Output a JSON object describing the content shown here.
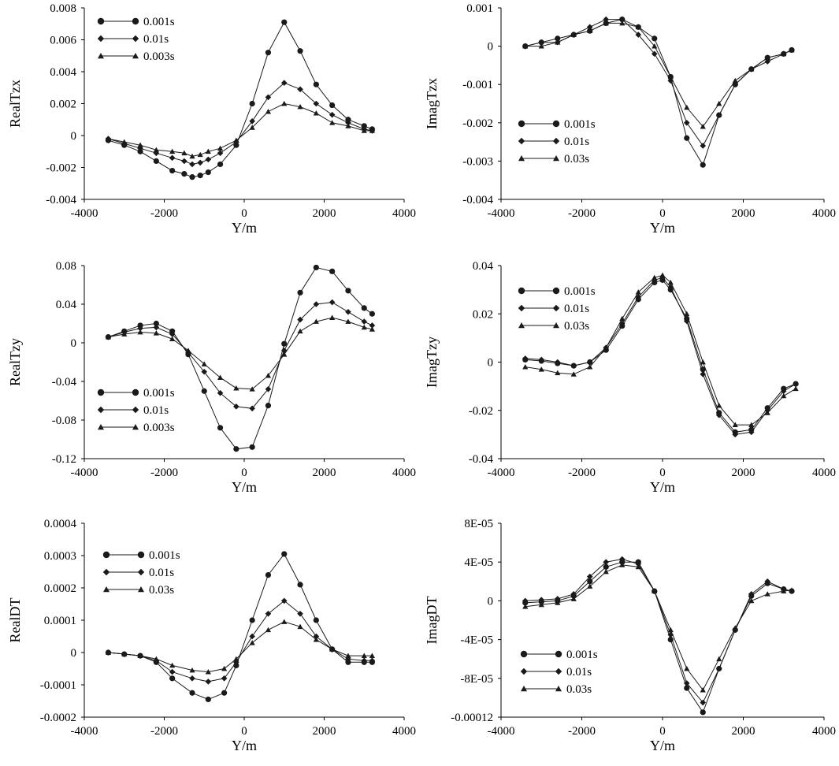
{
  "colors": {
    "line": "#1a1a1a",
    "axis": "#000000",
    "background": "#ffffff"
  },
  "markers": {
    "0.001s": "circle",
    "0.01s": "diamond",
    "0.003s": "triangle",
    "0.03s": "triangle"
  },
  "chart_data": [
    {
      "id": "realtzx",
      "type": "line",
      "title": "",
      "xlabel": "Y/m",
      "ylabel": "RealTzx",
      "xlim": [
        -4000,
        4000
      ],
      "ylim": [
        -0.004,
        0.008
      ],
      "xticks": [
        "-4000",
        "-2000",
        "0",
        "2000",
        "4000"
      ],
      "xtick_values": [
        -4000,
        -2000,
        0,
        2000,
        4000
      ],
      "yticks": [
        "-0.004",
        "-0.002",
        "0",
        "0.002",
        "0.004",
        "0.006",
        "0.008"
      ],
      "ytick_values": [
        -0.004,
        -0.002,
        0,
        0.002,
        0.004,
        0.006,
        0.008
      ],
      "legend_position": "top-left",
      "series": [
        {
          "name": "0.001s",
          "marker": "circle",
          "x": [
            -3400,
            -3000,
            -2600,
            -2200,
            -1800,
            -1500,
            -1300,
            -1100,
            -900,
            -600,
            -200,
            200,
            600,
            1000,
            1400,
            1800,
            2200,
            2600,
            3000,
            3200
          ],
          "y": [
            -0.0003,
            -0.0006,
            -0.001,
            -0.0016,
            -0.0022,
            -0.0024,
            -0.0026,
            -0.0025,
            -0.0023,
            -0.0018,
            -0.0006,
            0.002,
            0.0052,
            0.0071,
            0.0053,
            0.0032,
            0.0019,
            0.001,
            0.0006,
            0.0004
          ]
        },
        {
          "name": "0.01s",
          "marker": "diamond",
          "x": [
            -3400,
            -3000,
            -2600,
            -2200,
            -1800,
            -1500,
            -1300,
            -1100,
            -900,
            -600,
            -200,
            200,
            600,
            1000,
            1400,
            1800,
            2200,
            2600,
            3000,
            3200
          ],
          "y": [
            -0.0002,
            -0.0005,
            -0.0008,
            -0.0011,
            -0.0014,
            -0.0016,
            -0.0018,
            -0.0017,
            -0.0015,
            -0.0011,
            -0.0004,
            0.0009,
            0.0024,
            0.0033,
            0.0029,
            0.002,
            0.0013,
            0.0008,
            0.0004,
            0.0003
          ]
        },
        {
          "name": "0.003s",
          "marker": "triangle",
          "x": [
            -3400,
            -3000,
            -2600,
            -2200,
            -1800,
            -1500,
            -1300,
            -1100,
            -900,
            -600,
            -200,
            200,
            600,
            1000,
            1400,
            1800,
            2200,
            2600,
            3000,
            3200
          ],
          "y": [
            -0.0002,
            -0.0004,
            -0.0006,
            -0.0009,
            -0.001,
            -0.0011,
            -0.0013,
            -0.0012,
            -0.001,
            -0.0008,
            -0.0003,
            0.0005,
            0.0015,
            0.002,
            0.0018,
            0.0014,
            0.0008,
            0.0006,
            0.0003,
            0.0003
          ]
        }
      ]
    },
    {
      "id": "imagtzx",
      "type": "line",
      "title": "",
      "xlabel": "Y/m",
      "ylabel": "ImagTzx",
      "xlim": [
        -4000,
        4000
      ],
      "ylim": [
        -0.004,
        0.001
      ],
      "xticks": [
        "-4000",
        "-2000",
        "0",
        "2000",
        "4000"
      ],
      "xtick_values": [
        -4000,
        -2000,
        0,
        2000,
        4000
      ],
      "yticks": [
        "-0.004",
        "-0.003",
        "-0.002",
        "-0.001",
        "0",
        "0.001"
      ],
      "ytick_values": [
        -0.004,
        -0.003,
        -0.002,
        -0.001,
        0,
        0.001
      ],
      "legend_position": "middle-left",
      "series": [
        {
          "name": "0.001s",
          "marker": "circle",
          "x": [
            -3400,
            -3000,
            -2600,
            -2200,
            -1800,
            -1400,
            -1000,
            -600,
            -200,
            200,
            600,
            1000,
            1400,
            1800,
            2200,
            2600,
            3000,
            3200
          ],
          "y": [
            0.0,
            0.0001,
            0.0002,
            0.0003,
            0.0004,
            0.0006,
            0.0007,
            0.0005,
            0.0002,
            -0.0008,
            -0.0024,
            -0.0031,
            -0.0018,
            -0.001,
            -0.0006,
            -0.0003,
            -0.0002,
            -0.0001
          ]
        },
        {
          "name": "0.01s",
          "marker": "diamond",
          "x": [
            -3400,
            -3000,
            -2600,
            -2200,
            -1800,
            -1400,
            -1000,
            -600,
            -200,
            200,
            600,
            1000,
            1400,
            1800,
            2200,
            2600,
            3000,
            3200
          ],
          "y": [
            0.0,
            0.0001,
            0.0001,
            0.0003,
            0.0005,
            0.0007,
            0.0007,
            0.0003,
            -0.0002,
            -0.0009,
            -0.002,
            -0.0026,
            -0.0018,
            -0.001,
            -0.0006,
            -0.0004,
            -0.0002,
            -0.0001
          ]
        },
        {
          "name": "0.03s",
          "marker": "triangle",
          "x": [
            -3400,
            -3000,
            -2600,
            -2200,
            -1800,
            -1400,
            -1000,
            -600,
            -200,
            200,
            600,
            1000,
            1400,
            1800,
            2200,
            2600,
            3000,
            3200
          ],
          "y": [
            0.0,
            0.0,
            0.0001,
            0.0003,
            0.0004,
            0.0006,
            0.0006,
            0.0005,
            0.0,
            -0.0008,
            -0.0016,
            -0.0021,
            -0.0015,
            -0.0009,
            -0.0006,
            -0.0003,
            -0.0002,
            -0.0001
          ]
        }
      ]
    },
    {
      "id": "realtzy",
      "type": "line",
      "title": "",
      "xlabel": "Y/m",
      "ylabel": "RealTzy",
      "xlim": [
        -4000,
        4000
      ],
      "ylim": [
        -0.12,
        0.08
      ],
      "xticks": [
        "-4000",
        "-2000",
        "0",
        "2000",
        "4000"
      ],
      "xtick_values": [
        -4000,
        -2000,
        0,
        2000,
        4000
      ],
      "yticks": [
        "-0.12",
        "-0.08",
        "-0.04",
        "0",
        "0.04",
        "0.08"
      ],
      "ytick_values": [
        -0.12,
        -0.08,
        -0.04,
        0,
        0.04,
        0.08
      ],
      "legend_position": "bottom-left",
      "series": [
        {
          "name": "0.001s",
          "marker": "circle",
          "x": [
            -3400,
            -3000,
            -2600,
            -2200,
            -1800,
            -1400,
            -1000,
            -600,
            -200,
            200,
            600,
            1000,
            1400,
            1800,
            2200,
            2600,
            3000,
            3200
          ],
          "y": [
            0.006,
            0.012,
            0.018,
            0.02,
            0.012,
            -0.012,
            -0.05,
            -0.088,
            -0.11,
            -0.108,
            -0.065,
            -0.001,
            0.052,
            0.078,
            0.074,
            0.054,
            0.036,
            0.03
          ]
        },
        {
          "name": "0.01s",
          "marker": "diamond",
          "x": [
            -3400,
            -3000,
            -2600,
            -2200,
            -1800,
            -1400,
            -1000,
            -600,
            -200,
            200,
            600,
            1000,
            1400,
            1800,
            2200,
            2600,
            3000,
            3200
          ],
          "y": [
            0.006,
            0.011,
            0.015,
            0.016,
            0.009,
            -0.01,
            -0.03,
            -0.052,
            -0.066,
            -0.068,
            -0.048,
            -0.008,
            0.024,
            0.04,
            0.042,
            0.032,
            0.022,
            0.018
          ]
        },
        {
          "name": "0.003s",
          "marker": "triangle",
          "x": [
            -3400,
            -3000,
            -2600,
            -2200,
            -1800,
            -1400,
            -1000,
            -600,
            -200,
            200,
            600,
            1000,
            1400,
            1800,
            2200,
            2600,
            3000,
            3200
          ],
          "y": [
            0.006,
            0.009,
            0.011,
            0.01,
            0.004,
            -0.008,
            -0.022,
            -0.036,
            -0.047,
            -0.048,
            -0.034,
            -0.012,
            0.012,
            0.022,
            0.026,
            0.022,
            0.016,
            0.014
          ]
        }
      ]
    },
    {
      "id": "imagtzy",
      "type": "line",
      "title": "",
      "xlabel": "Y/m",
      "ylabel": "ImagTzy",
      "xlim": [
        -4000,
        4000
      ],
      "ylim": [
        -0.04,
        0.04
      ],
      "xticks": [
        "-4000",
        "-2000",
        "0",
        "2000",
        "4000"
      ],
      "xtick_values": [
        -4000,
        -2000,
        0,
        2000,
        4000
      ],
      "yticks": [
        "-0.04",
        "-0.02",
        "0",
        "0.02",
        "0.04"
      ],
      "ytick_values": [
        -0.04,
        -0.02,
        0,
        0.02,
        0.04
      ],
      "legend_position": "top-left",
      "series": [
        {
          "name": "0.001s",
          "marker": "circle",
          "x": [
            -3400,
            -3000,
            -2600,
            -2200,
            -1800,
            -1400,
            -1000,
            -600,
            -200,
            0,
            200,
            600,
            1000,
            1400,
            1800,
            2200,
            2600,
            3000,
            3300
          ],
          "y": [
            0.001,
            0.0005,
            -0.0005,
            -0.0015,
            0.0,
            0.005,
            0.015,
            0.026,
            0.033,
            0.034,
            0.03,
            0.018,
            -0.003,
            -0.021,
            -0.029,
            -0.028,
            -0.019,
            -0.011,
            -0.009
          ]
        },
        {
          "name": "0.01s",
          "marker": "diamond",
          "x": [
            -3400,
            -3000,
            -2600,
            -2200,
            -1800,
            -1400,
            -1000,
            -600,
            -200,
            0,
            200,
            600,
            1000,
            1400,
            1800,
            2200,
            2600,
            3000,
            3300
          ],
          "y": [
            0.0015,
            0.001,
            0.0,
            -0.0015,
            0.0,
            0.006,
            0.016,
            0.027,
            0.034,
            0.035,
            0.031,
            0.017,
            -0.005,
            -0.022,
            -0.03,
            -0.029,
            -0.02,
            -0.012,
            -0.009
          ]
        },
        {
          "name": "0.03s",
          "marker": "triangle",
          "x": [
            -3400,
            -3000,
            -2600,
            -2200,
            -1800,
            -1400,
            -1000,
            -600,
            -200,
            0,
            200,
            600,
            1000,
            1400,
            1800,
            2200,
            2600,
            3000,
            3300
          ],
          "y": [
            -0.002,
            -0.003,
            -0.0045,
            -0.005,
            -0.002,
            0.006,
            0.018,
            0.029,
            0.035,
            0.036,
            0.033,
            0.02,
            0.0,
            -0.018,
            -0.026,
            -0.026,
            -0.021,
            -0.014,
            -0.011
          ]
        }
      ]
    },
    {
      "id": "realdt",
      "type": "line",
      "title": "",
      "xlabel": "Y/m",
      "ylabel": "RealDT",
      "xlim": [
        -4000,
        4000
      ],
      "ylim": [
        -0.0002,
        0.0004
      ],
      "xticks": [
        "-4000",
        "-2000",
        "0",
        "2000",
        "4000"
      ],
      "xtick_values": [
        -4000,
        -2000,
        0,
        2000,
        4000
      ],
      "yticks": [
        "-0.0002",
        "-0.0001",
        "0",
        "0.0001",
        "0.0002",
        "0.0003",
        "0.0004"
      ],
      "ytick_values": [
        -0.0002,
        -0.0001,
        0,
        0.0001,
        0.0002,
        0.0003,
        0.0004
      ],
      "legend_position": "top-left",
      "series": [
        {
          "name": "0.001s",
          "marker": "circle",
          "x": [
            -3400,
            -3000,
            -2600,
            -2200,
            -1800,
            -1300,
            -900,
            -500,
            -200,
            200,
            600,
            1000,
            1400,
            1800,
            2200,
            2600,
            3000,
            3200
          ],
          "y": [
            0.0,
            -5e-06,
            -1e-05,
            -3e-05,
            -8e-05,
            -0.000125,
            -0.000145,
            -0.000125,
            -4e-05,
            0.0001,
            0.00024,
            0.000305,
            0.00021,
            0.0001,
            1e-05,
            -3e-05,
            -3e-05,
            -3e-05
          ]
        },
        {
          "name": "0.01s",
          "marker": "diamond",
          "x": [
            -3400,
            -3000,
            -2600,
            -2200,
            -1800,
            -1300,
            -900,
            -500,
            -200,
            200,
            600,
            1000,
            1400,
            1800,
            2200,
            2600,
            3000,
            3200
          ],
          "y": [
            0.0,
            -5e-06,
            -1e-05,
            -2.5e-05,
            -6e-05,
            -8e-05,
            -9e-05,
            -8e-05,
            -3e-05,
            5e-05,
            0.00012,
            0.00016,
            0.00012,
            5e-05,
            1e-05,
            -2e-05,
            -2.5e-05,
            -2.5e-05
          ]
        },
        {
          "name": "0.03s",
          "marker": "triangle",
          "x": [
            -3400,
            -3000,
            -2600,
            -2200,
            -1800,
            -1300,
            -900,
            -500,
            -200,
            200,
            600,
            1000,
            1400,
            1800,
            2200,
            2600,
            3000,
            3200
          ],
          "y": [
            0.0,
            -5e-06,
            -1e-05,
            -2e-05,
            -4e-05,
            -5.5e-05,
            -6e-05,
            -5e-05,
            -2e-05,
            3e-05,
            7e-05,
            9.5e-05,
            8e-05,
            4e-05,
            1e-05,
            -1e-05,
            -1e-05,
            -1e-05
          ]
        }
      ]
    },
    {
      "id": "imagdt",
      "type": "line",
      "title": "",
      "xlabel": "Y/m",
      "ylabel": "ImagDT",
      "xlim": [
        -4000,
        4000
      ],
      "ylim": [
        -0.00012,
        8e-05
      ],
      "xticks": [
        "-4000",
        "-2000",
        "0",
        "2000",
        "4000"
      ],
      "xtick_values": [
        -4000,
        -2000,
        0,
        2000,
        4000
      ],
      "yticks": [
        "-0.00012",
        "-8E-05",
        "-4E-05",
        "0",
        "4E-05",
        "8E-05"
      ],
      "ytick_values": [
        -0.00012,
        -8e-05,
        -4e-05,
        0,
        4e-05,
        8e-05
      ],
      "legend_position": "bottom-left",
      "series": [
        {
          "name": "0.001s",
          "marker": "circle",
          "x": [
            -3400,
            -3000,
            -2600,
            -2200,
            -1800,
            -1400,
            -1000,
            -600,
            -200,
            200,
            600,
            1000,
            1400,
            1800,
            2200,
            2600,
            3000,
            3200
          ],
          "y": [
            -2e-06,
            -1e-06,
            0.0,
            5e-06,
            2e-05,
            3.5e-05,
            4e-05,
            4e-05,
            1e-05,
            -4e-05,
            -9e-05,
            -0.000115,
            -7e-05,
            -3e-05,
            5e-06,
            1.8e-05,
            1.2e-05,
            1e-05
          ]
        },
        {
          "name": "0.01s",
          "marker": "diamond",
          "x": [
            -3400,
            -3000,
            -2600,
            -2200,
            -1800,
            -1400,
            -1000,
            -600,
            -200,
            200,
            600,
            1000,
            1400,
            1800,
            2200,
            2600,
            3000,
            3200
          ],
          "y": [
            0.0,
            1e-06,
            2e-06,
            7e-06,
            2.5e-05,
            4e-05,
            4.3e-05,
            3.8e-05,
            1e-05,
            -3.5e-05,
            -8.5e-05,
            -0.000105,
            -7e-05,
            -3e-05,
            7e-06,
            2e-05,
            1.2e-05,
            1e-05
          ]
        },
        {
          "name": "0.03s",
          "marker": "triangle",
          "x": [
            -3400,
            -3000,
            -2600,
            -2200,
            -1800,
            -1400,
            -1000,
            -600,
            -200,
            200,
            600,
            1000,
            1400,
            1800,
            2200,
            2600,
            3000,
            3200
          ],
          "y": [
            -6e-06,
            -4e-06,
            -2e-06,
            2e-06,
            1.5e-05,
            3e-05,
            3.7e-05,
            3.5e-05,
            1e-05,
            -3e-05,
            -7e-05,
            -9.2e-05,
            -6e-05,
            -2.8e-05,
            0.0,
            7e-06,
            1e-05,
            1.1e-05
          ]
        }
      ]
    }
  ]
}
